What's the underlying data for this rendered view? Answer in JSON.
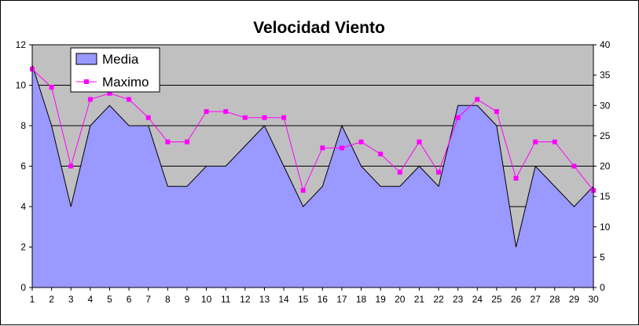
{
  "chart_data": {
    "type": "area",
    "title": "Velocidad Viento",
    "xlabel": "",
    "ylabel": "",
    "y2label": "",
    "x": [
      1,
      2,
      3,
      4,
      5,
      6,
      7,
      8,
      9,
      10,
      11,
      12,
      13,
      14,
      15,
      16,
      17,
      18,
      19,
      20,
      21,
      22,
      23,
      24,
      25,
      26,
      27,
      28,
      29,
      30
    ],
    "ylim": [
      0,
      12
    ],
    "yticks": [
      0,
      2,
      4,
      6,
      8,
      10,
      12
    ],
    "y2lim": [
      0,
      40
    ],
    "y2ticks": [
      0,
      5,
      10,
      15,
      20,
      25,
      30,
      35,
      40
    ],
    "grid": true,
    "legend": "top-left",
    "colors": {
      "plot_bg": "#c0c0c0",
      "area": "#9999ff",
      "line": "#ff00ff",
      "gridline": "#000000"
    },
    "series": [
      {
        "name": "Media",
        "type": "area",
        "axis": "left",
        "values": [
          11,
          8,
          4,
          8,
          9,
          8,
          8,
          5,
          5,
          6,
          6,
          7,
          8,
          6,
          4,
          5,
          8,
          6,
          5,
          5,
          6,
          5,
          9,
          9,
          8,
          2,
          6,
          5,
          4,
          5
        ]
      },
      {
        "name": "Maximo",
        "type": "line",
        "axis": "right",
        "values": [
          36,
          33,
          20,
          31,
          32,
          31,
          28,
          24,
          24,
          29,
          29,
          28,
          28,
          28,
          16,
          23,
          23,
          24,
          22,
          19,
          24,
          19,
          28,
          31,
          29,
          18,
          24,
          24,
          20,
          16
        ]
      }
    ]
  }
}
